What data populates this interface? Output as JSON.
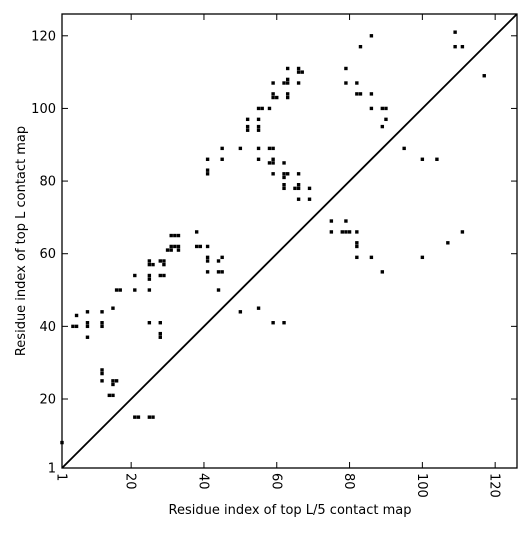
{
  "chart_data": {
    "type": "scatter",
    "title": "",
    "xlabel": "Residue index of top L/5 contact map",
    "ylabel": "Residue index of top L contact map",
    "xlim": [
      1,
      126
    ],
    "ylim": [
      1,
      126
    ],
    "xticks": [
      1,
      20,
      40,
      60,
      80,
      100,
      120
    ],
    "yticks": [
      1,
      20,
      40,
      60,
      80,
      100,
      120
    ],
    "x_tick_rotation": 90,
    "grid": false,
    "legend": "none",
    "marker": "square",
    "marker_color": "#000000",
    "reference_line": {
      "from": [
        1,
        1
      ],
      "to": [
        126,
        126
      ],
      "color": "#000000"
    },
    "series": [
      {
        "points": [
          [
            1,
            8
          ],
          [
            4,
            40
          ],
          [
            5,
            40
          ],
          [
            5,
            43
          ],
          [
            8,
            37
          ],
          [
            8,
            40
          ],
          [
            8,
            41
          ],
          [
            8,
            44
          ],
          [
            12,
            25
          ],
          [
            12,
            27
          ],
          [
            12,
            28
          ],
          [
            12,
            40
          ],
          [
            12,
            41
          ],
          [
            12,
            44
          ],
          [
            14,
            21
          ],
          [
            15,
            21
          ],
          [
            15,
            24
          ],
          [
            15,
            25
          ],
          [
            15,
            45
          ],
          [
            16,
            25
          ],
          [
            16,
            50
          ],
          [
            17,
            50
          ],
          [
            21,
            15
          ],
          [
            22,
            15
          ],
          [
            21,
            50
          ],
          [
            21,
            54
          ],
          [
            25,
            15
          ],
          [
            26,
            15
          ],
          [
            25,
            41
          ],
          [
            25,
            50
          ],
          [
            25,
            53
          ],
          [
            25,
            54
          ],
          [
            25,
            57
          ],
          [
            25,
            58
          ],
          [
            26,
            57
          ],
          [
            28,
            37
          ],
          [
            28,
            38
          ],
          [
            28,
            41
          ],
          [
            28,
            54
          ],
          [
            28,
            58
          ],
          [
            29,
            54
          ],
          [
            29,
            57
          ],
          [
            29,
            58
          ],
          [
            30,
            61
          ],
          [
            31,
            61
          ],
          [
            31,
            62
          ],
          [
            31,
            65
          ],
          [
            32,
            62
          ],
          [
            32,
            65
          ],
          [
            33,
            61
          ],
          [
            33,
            62
          ],
          [
            33,
            65
          ],
          [
            38,
            62
          ],
          [
            38,
            66
          ],
          [
            39,
            62
          ],
          [
            41,
            55
          ],
          [
            41,
            58
          ],
          [
            41,
            59
          ],
          [
            41,
            62
          ],
          [
            41,
            82
          ],
          [
            41,
            83
          ],
          [
            41,
            86
          ],
          [
            44,
            50
          ],
          [
            44,
            55
          ],
          [
            44,
            58
          ],
          [
            45,
            55
          ],
          [
            45,
            59
          ],
          [
            45,
            86
          ],
          [
            45,
            89
          ],
          [
            50,
            44
          ],
          [
            50,
            89
          ],
          [
            52,
            94
          ],
          [
            52,
            95
          ],
          [
            52,
            97
          ],
          [
            55,
            45
          ],
          [
            55,
            86
          ],
          [
            55,
            89
          ],
          [
            55,
            94
          ],
          [
            55,
            95
          ],
          [
            55,
            97
          ],
          [
            55,
            100
          ],
          [
            56,
            100
          ],
          [
            58,
            85
          ],
          [
            58,
            89
          ],
          [
            58,
            100
          ],
          [
            59,
            41
          ],
          [
            59,
            82
          ],
          [
            59,
            85
          ],
          [
            59,
            86
          ],
          [
            59,
            89
          ],
          [
            59,
            103
          ],
          [
            59,
            104
          ],
          [
            59,
            107
          ],
          [
            60,
            103
          ],
          [
            62,
            41
          ],
          [
            62,
            78
          ],
          [
            62,
            79
          ],
          [
            62,
            81
          ],
          [
            62,
            82
          ],
          [
            62,
            85
          ],
          [
            62,
            107
          ],
          [
            63,
            82
          ],
          [
            63,
            103
          ],
          [
            63,
            104
          ],
          [
            63,
            107
          ],
          [
            63,
            108
          ],
          [
            63,
            111
          ],
          [
            65,
            78
          ],
          [
            66,
            75
          ],
          [
            66,
            78
          ],
          [
            66,
            79
          ],
          [
            66,
            82
          ],
          [
            66,
            107
          ],
          [
            66,
            110
          ],
          [
            66,
            111
          ],
          [
            67,
            110
          ],
          [
            69,
            75
          ],
          [
            69,
            78
          ],
          [
            75,
            66
          ],
          [
            75,
            69
          ],
          [
            78,
            66
          ],
          [
            79,
            66
          ],
          [
            79,
            69
          ],
          [
            79,
            107
          ],
          [
            79,
            111
          ],
          [
            80,
            66
          ],
          [
            82,
            59
          ],
          [
            82,
            62
          ],
          [
            82,
            63
          ],
          [
            82,
            66
          ],
          [
            82,
            104
          ],
          [
            82,
            107
          ],
          [
            83,
            104
          ],
          [
            83,
            117
          ],
          [
            86,
            59
          ],
          [
            86,
            100
          ],
          [
            86,
            104
          ],
          [
            86,
            120
          ],
          [
            89,
            55
          ],
          [
            89,
            95
          ],
          [
            89,
            100
          ],
          [
            90,
            97
          ],
          [
            90,
            100
          ],
          [
            95,
            89
          ],
          [
            100,
            59
          ],
          [
            100,
            86
          ],
          [
            104,
            86
          ],
          [
            107,
            63
          ],
          [
            109,
            117
          ],
          [
            109,
            121
          ],
          [
            111,
            66
          ],
          [
            111,
            117
          ],
          [
            117,
            109
          ]
        ]
      }
    ]
  }
}
